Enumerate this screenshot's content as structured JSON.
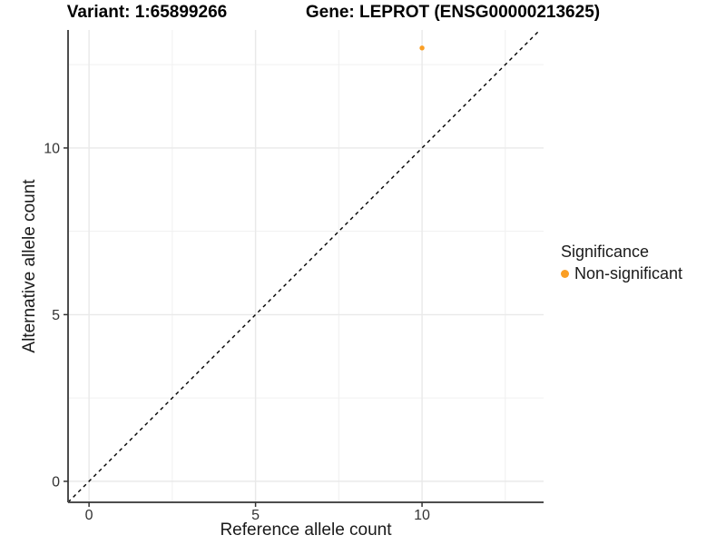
{
  "chart_data": {
    "type": "scatter",
    "title_left": "Variant: 1:65899266",
    "title_right": "Gene: LEPROT (ENSG00000213625)",
    "xlabel": "Reference allele count",
    "ylabel": "Alternative allele count",
    "series": [
      {
        "name": "Non-significant",
        "color": "#FA9E24",
        "points": [
          {
            "x": 10,
            "y": 13
          }
        ]
      }
    ],
    "x_ticks": [
      0,
      5,
      10
    ],
    "y_ticks": [
      0,
      5,
      10
    ],
    "x_minor_ticks": [
      2.5,
      7.5,
      12.5
    ],
    "y_minor_ticks": [
      2.5,
      7.5,
      12.5
    ],
    "xlim": [
      -0.63,
      13.65
    ],
    "ylim": [
      -0.63,
      13.54
    ],
    "grid": true,
    "legend_position": "right",
    "legend_title": "Significance",
    "reference_line": {
      "slope": 1,
      "intercept": 0,
      "style": "dashed",
      "color": "#000000"
    }
  },
  "palette": {
    "point": "#FA9E24",
    "axis_line": "#4d4d4d",
    "tick_mark": "#333333",
    "tick_label": "#333333",
    "grid_major": "#e9e9e9",
    "grid_minor": "#f0f0f0",
    "background": "#ffffff"
  }
}
